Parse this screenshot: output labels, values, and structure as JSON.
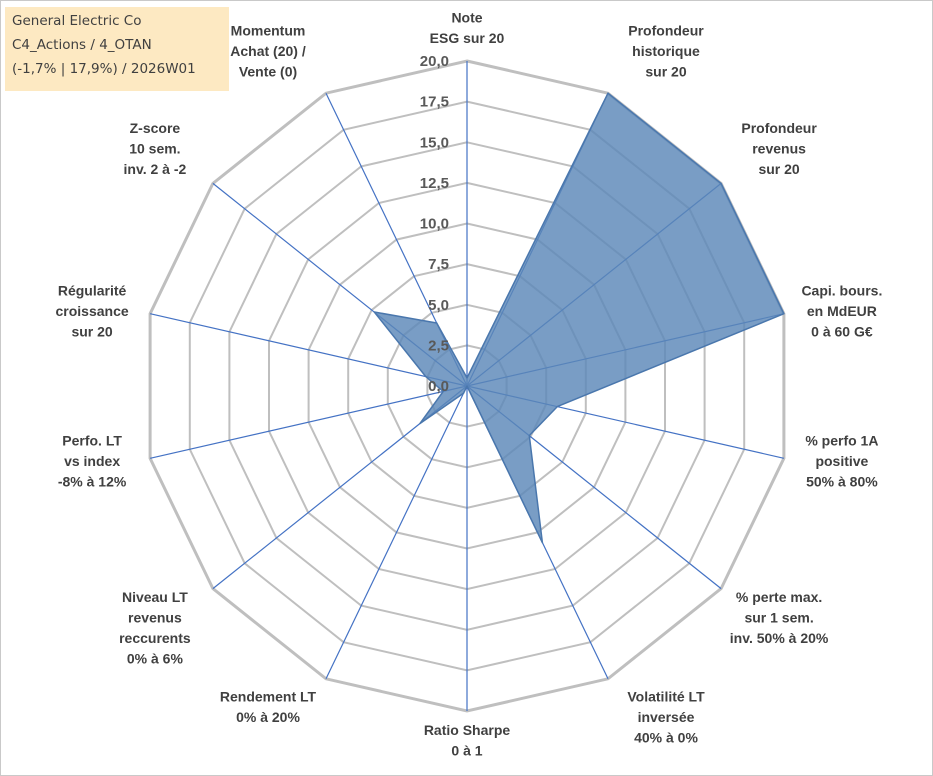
{
  "info_box": {
    "line1": "General Electric Co",
    "line2": "C4_Actions / 4_OTAN",
    "line3": "(-1,7% | 17,9%) / 2026W01"
  },
  "colors": {
    "series_fill": "#5b87b8",
    "series_stroke": "#4a77ad",
    "axis_line": "#4472c4",
    "grid_line": "#bfbfbf",
    "info_box_bg": "#fde9c2"
  },
  "chart_data": {
    "type": "radar",
    "title": "",
    "rmin": 0,
    "rmax": 20,
    "tick_step": 2.5,
    "tick_labels": [
      "0,0",
      "2,5",
      "5,0",
      "7,5",
      "10,0",
      "12,5",
      "15,0",
      "17,5",
      "20,0"
    ],
    "grid": true,
    "legend": "none",
    "axes": [
      [
        "Note",
        "ESG sur 20"
      ],
      [
        "Profondeur",
        "historique",
        "sur 20"
      ],
      [
        "Profondeur",
        "revenus",
        "sur 20"
      ],
      [
        "Capi. bours.",
        "en MdEUR",
        "0 à 60 G€"
      ],
      [
        "% perfo 1A",
        "positive",
        "50% à 80%"
      ],
      [
        "% perte max.",
        "sur 1 sem.",
        "inv. 50% à 20%"
      ],
      [
        "Volatilité LT",
        "inversée",
        "40% à 0%"
      ],
      [
        "Ratio Sharpe",
        "0 à 1"
      ],
      [
        "Rendement LT",
        "0% à 20%"
      ],
      [
        "Niveau LT",
        "revenus",
        "reccurents",
        "0% à 6%"
      ],
      [
        "Perfo. LT",
        "vs index",
        "-8% à 12%"
      ],
      [
        "Régularité",
        "croissance",
        "sur 20"
      ],
      [
        "Z-score",
        "10 sem.",
        "inv. 2 à -2"
      ],
      [
        "Momentum",
        "Achat (20) /",
        "Vente (0)"
      ]
    ],
    "series": [
      {
        "values": [
          0.5,
          20,
          20,
          20,
          5.7,
          4.9,
          10.7,
          0,
          0.5,
          3.7,
          1.5,
          2.6,
          7.3,
          4.3
        ]
      }
    ]
  }
}
